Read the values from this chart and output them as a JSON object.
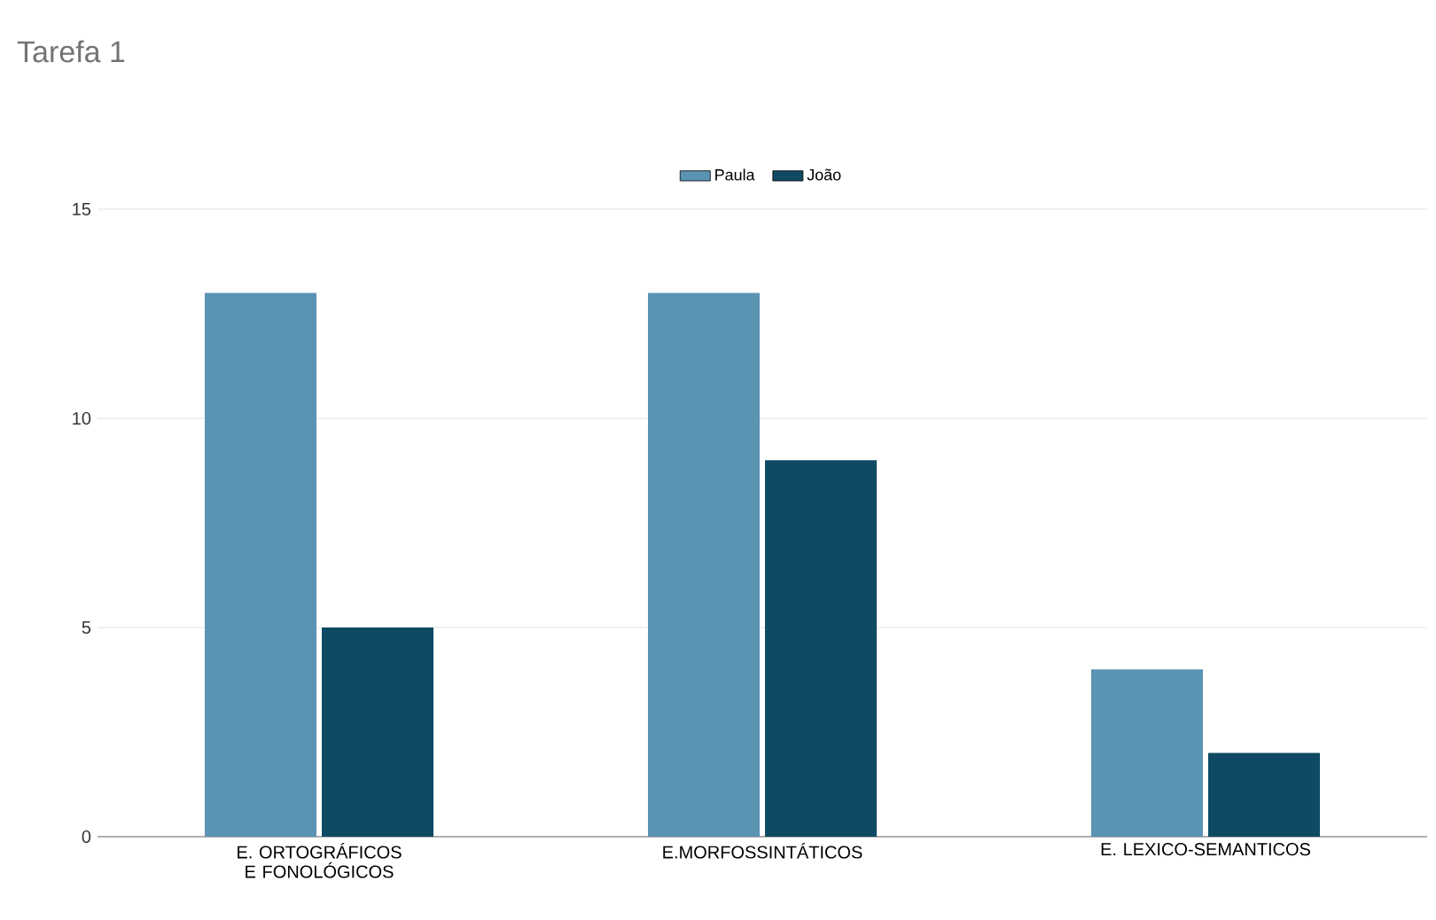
{
  "chart_data": {
    "type": "bar",
    "title": "Tarefa 1",
    "categories": [
      "E. ORTOGRÁFICOS E FONOLÓGICOS",
      "E.MORFOSSINTÁTICOS",
      "E. LEXICO-SEMANTICOS"
    ],
    "series": [
      {
        "name": "Paula",
        "color": "#5b93b3",
        "values": [
          13,
          13,
          4
        ]
      },
      {
        "name": "João",
        "color": "#0e4a63",
        "values": [
          5,
          9,
          2
        ]
      }
    ],
    "ylim": [
      0,
      15
    ],
    "yticks": [
      0,
      5,
      10,
      15
    ],
    "grid": "y",
    "legend": "top"
  }
}
